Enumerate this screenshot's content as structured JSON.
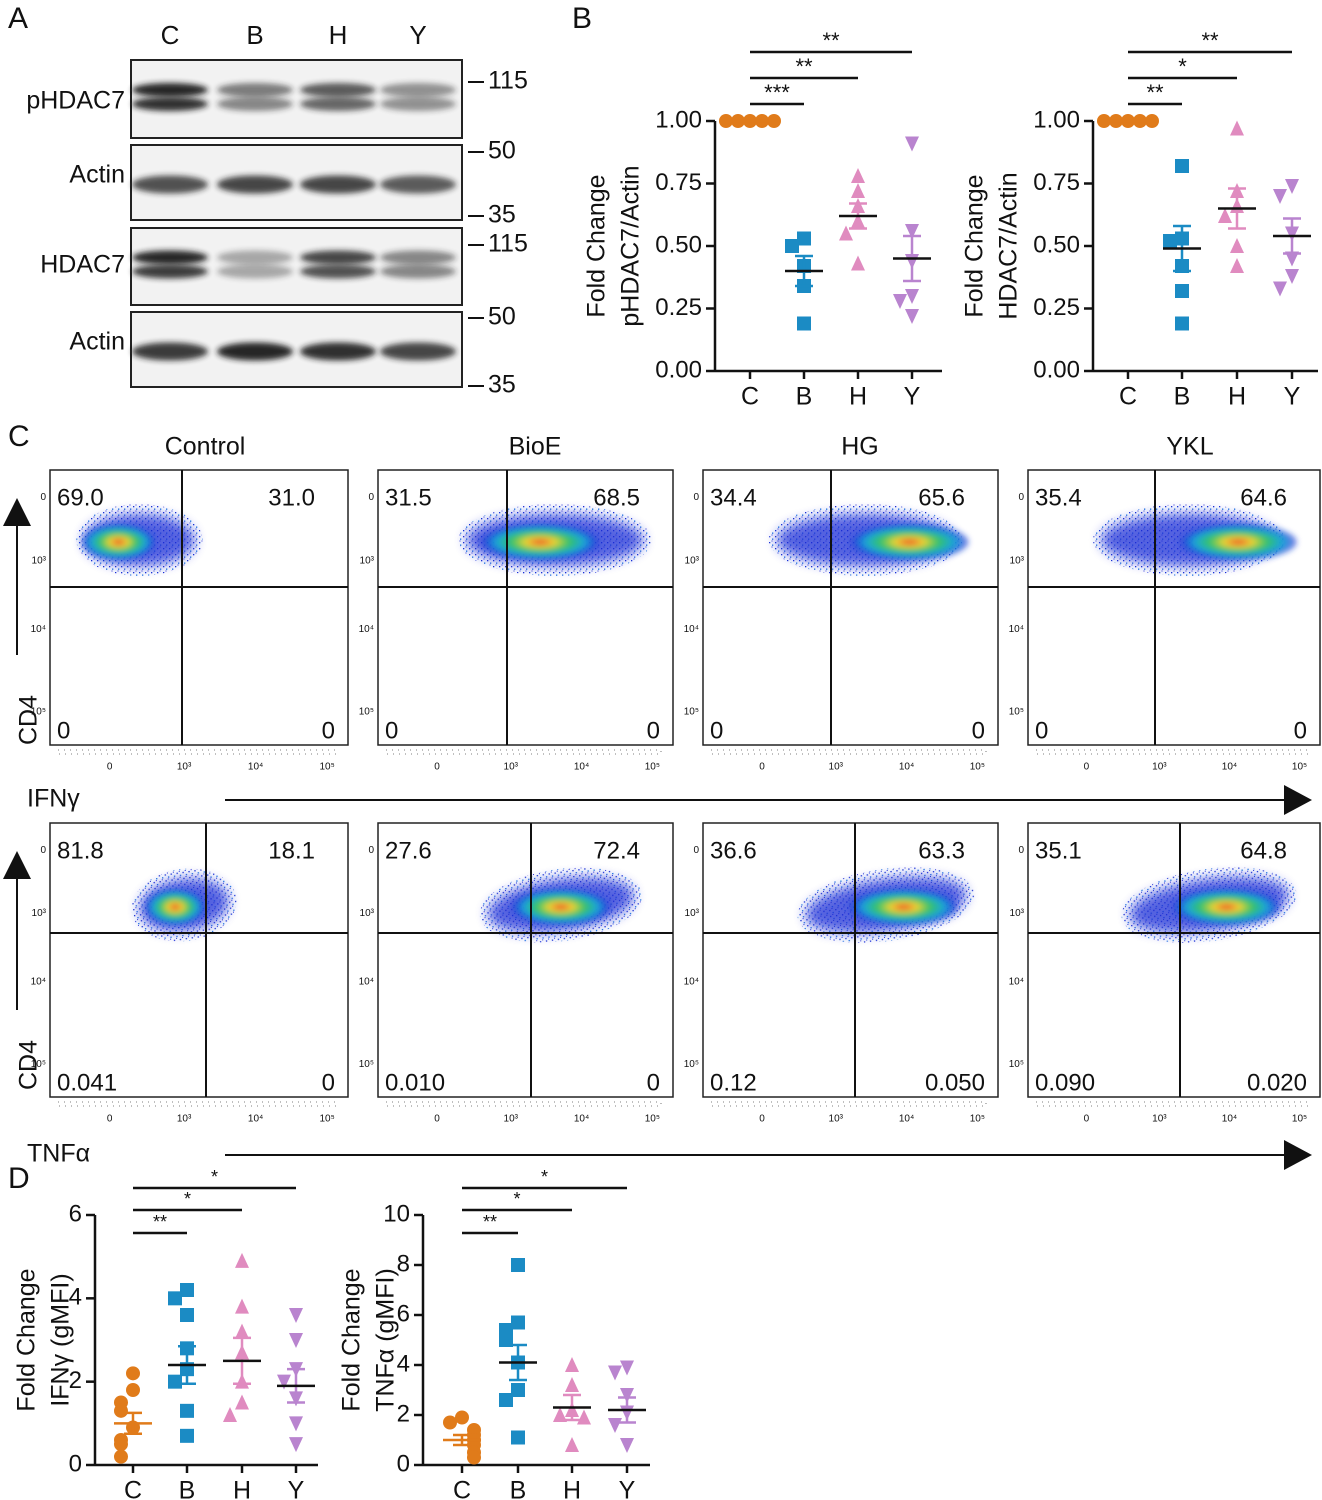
{
  "panel_labels": [
    "A",
    "B",
    "C",
    "D"
  ],
  "blot": {
    "lanes": [
      "C",
      "B",
      "H",
      "Y"
    ],
    "rows": [
      {
        "label": "pHDAC7"
      },
      {
        "label": "Actin"
      },
      {
        "label": "HDAC7"
      },
      {
        "label": "Actin"
      }
    ],
    "markers": [
      115,
      50,
      35,
      115,
      50,
      35
    ]
  },
  "chart_data": [
    {
      "type": "dotplot",
      "ylabel": [
        "Fold Change",
        "pHDAC7/Actin"
      ],
      "categories": [
        "C",
        "B",
        "H",
        "Y"
      ],
      "points": [
        [
          1,
          1,
          1,
          1,
          1
        ],
        [
          0.53,
          0.5,
          0.42,
          0.34,
          0.19
        ],
        [
          0.78,
          0.72,
          0.66,
          0.6,
          0.55,
          0.43
        ],
        [
          0.91,
          0.56,
          0.44,
          0.3,
          0.28,
          0.22
        ]
      ],
      "means": [
        1,
        0.4,
        0.62,
        0.45
      ],
      "sems": [
        0,
        0.06,
        0.05,
        0.09
      ],
      "colors": [
        "#e07b1a",
        "#1b8bc4",
        "#e08bbf",
        "#b984cf"
      ],
      "markers": [
        "circle",
        "square",
        "triangle",
        "triangle-down"
      ],
      "ylim": [
        0,
        1
      ],
      "yticks": [
        {
          "value": 0,
          "label": "0.00"
        },
        {
          "value": 0.25,
          "label": "0.25"
        },
        {
          "value": 0.5,
          "label": "0.50"
        },
        {
          "value": 0.75,
          "label": "0.75"
        },
        {
          "value": 1,
          "label": "1.00"
        }
      ],
      "significance": [
        {
          "from": "C",
          "to": "B",
          "label": "***"
        },
        {
          "from": "C",
          "to": "H",
          "label": "**"
        },
        {
          "from": "C",
          "to": "Y",
          "label": "**"
        }
      ]
    },
    {
      "type": "dotplot",
      "ylabel": [
        "Fold Change",
        "HDAC7/Actin"
      ],
      "categories": [
        "C",
        "B",
        "H",
        "Y"
      ],
      "points": [
        [
          1,
          1,
          1,
          1,
          1
        ],
        [
          0.82,
          0.53,
          0.52,
          0.42,
          0.32,
          0.19
        ],
        [
          0.97,
          0.72,
          0.66,
          0.62,
          0.5,
          0.42
        ],
        [
          0.74,
          0.7,
          0.55,
          0.45,
          0.38,
          0.33
        ]
      ],
      "means": [
        1,
        0.49,
        0.65,
        0.54
      ],
      "sems": [
        0,
        0.09,
        0.08,
        0.07
      ],
      "colors": [
        "#e07b1a",
        "#1b8bc4",
        "#e08bbf",
        "#b984cf"
      ],
      "markers": [
        "circle",
        "square",
        "triangle",
        "triangle-down"
      ],
      "ylim": [
        0,
        1
      ],
      "yticks": [
        {
          "value": 0,
          "label": "0.00"
        },
        {
          "value": 0.25,
          "label": "0.25"
        },
        {
          "value": 0.5,
          "label": "0.50"
        },
        {
          "value": 0.75,
          "label": "0.75"
        },
        {
          "value": 1,
          "label": "1.00"
        }
      ],
      "significance": [
        {
          "from": "C",
          "to": "B",
          "label": "**"
        },
        {
          "from": "C",
          "to": "H",
          "label": "*"
        },
        {
          "from": "C",
          "to": "Y",
          "label": "**"
        }
      ]
    },
    {
      "type": "dotplot",
      "ylabel": [
        "Fold Change",
        "IFNγ (gMFI)"
      ],
      "categories": [
        "C",
        "B",
        "H",
        "Y"
      ],
      "points": [
        [
          2.2,
          1.8,
          1.5,
          1.3,
          0.9,
          0.6,
          0.5,
          0.2
        ],
        [
          4.2,
          4,
          3.6,
          2.8,
          2.3,
          2,
          1.3,
          0.7
        ],
        [
          4.9,
          3.8,
          3.2,
          2.7,
          2,
          1.5,
          1.2
        ],
        [
          3.6,
          3,
          2.3,
          2,
          1.6,
          1,
          0.5
        ]
      ],
      "means": [
        1,
        2.4,
        2.5,
        1.9
      ],
      "sems": [
        0.25,
        0.45,
        0.55,
        0.4
      ],
      "colors": [
        "#e07b1a",
        "#1b8bc4",
        "#e08bbf",
        "#b984cf"
      ],
      "markers": [
        "circle",
        "square",
        "triangle",
        "triangle-down"
      ],
      "ylim": [
        0,
        6
      ],
      "yticks": [
        0,
        2,
        4,
        6
      ],
      "significance": [
        {
          "from": "C",
          "to": "B",
          "label": "**"
        },
        {
          "from": "C",
          "to": "H",
          "label": "*"
        },
        {
          "from": "C",
          "to": "Y",
          "label": "*"
        }
      ]
    },
    {
      "type": "dotplot",
      "ylabel": [
        "Fold Change",
        "TNFα (gMFI)"
      ],
      "categories": [
        "C",
        "B",
        "H",
        "Y"
      ],
      "points": [
        [
          1.9,
          1.7,
          1.4,
          1.2,
          1,
          0.8,
          0.5,
          0.3
        ],
        [
          8,
          5.7,
          5.4,
          5,
          4.1,
          3,
          2.6,
          1.1
        ],
        [
          4,
          3.2,
          2.2,
          2,
          1.9,
          0.8
        ],
        [
          3.9,
          3.7,
          2.8,
          2.1,
          1.6,
          0.8
        ]
      ],
      "means": [
        1,
        4.1,
        2.3,
        2.2
      ],
      "sems": [
        0.2,
        0.7,
        0.5,
        0.5
      ],
      "colors": [
        "#e07b1a",
        "#1b8bc4",
        "#e08bbf",
        "#b984cf"
      ],
      "markers": [
        "circle",
        "square",
        "triangle",
        "triangle-down"
      ],
      "ylim": [
        0,
        10
      ],
      "yticks": [
        0,
        2,
        4,
        6,
        8,
        10
      ],
      "significance": [
        {
          "from": "C",
          "to": "B",
          "label": "**"
        },
        {
          "from": "C",
          "to": "H",
          "label": "*"
        },
        {
          "from": "C",
          "to": "Y",
          "label": "*"
        }
      ]
    }
  ],
  "flow": {
    "columns": [
      "Control",
      "BioE",
      "HG",
      "YKL"
    ],
    "y_label": "CD4",
    "ticks": [
      "0",
      "10³",
      "10⁴",
      "10⁵"
    ],
    "rows": [
      {
        "x_label": "IFNγ",
        "quadrants": [
          [
            "69.0",
            "31.0",
            "0",
            "0"
          ],
          [
            "31.5",
            "68.5",
            "0",
            "0"
          ],
          [
            "34.4",
            "65.6",
            "0",
            "0"
          ],
          [
            "35.4",
            "64.6",
            "0",
            "0"
          ]
        ]
      },
      {
        "x_label": "TNFα",
        "quadrants": [
          [
            "81.8",
            "18.1",
            "0.041",
            "0"
          ],
          [
            "27.6",
            "72.4",
            "0.010",
            "0"
          ],
          [
            "36.6",
            "63.3",
            "0.12",
            "0.050"
          ],
          [
            "35.1",
            "64.8",
            "0.090",
            "0.020"
          ]
        ]
      }
    ]
  }
}
